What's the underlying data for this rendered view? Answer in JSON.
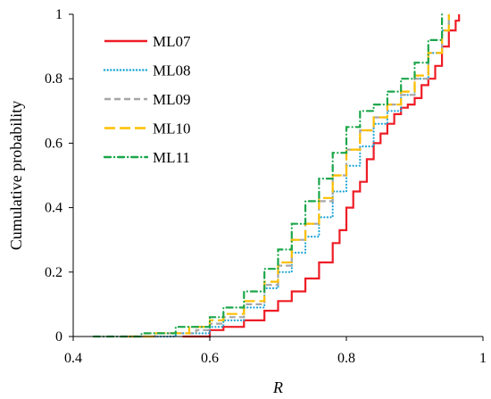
{
  "chart_data": {
    "type": "line",
    "title": "",
    "xlabel": "R",
    "ylabel": "Cumulative probability",
    "xlim": [
      0.4,
      1.0
    ],
    "ylim": [
      0,
      1
    ],
    "x_ticks": [
      "0.4",
      "0.6",
      "0.8",
      "1"
    ],
    "y_ticks": [
      "0",
      "0.2",
      "0.4",
      "0.6",
      "0.8",
      "1"
    ],
    "grid": false,
    "legend_position": "top-left",
    "series": [
      {
        "name": "ML07",
        "color": "#ee1c25",
        "dash": "solid",
        "x": [
          0.56,
          0.6,
          0.62,
          0.65,
          0.68,
          0.7,
          0.72,
          0.74,
          0.76,
          0.78,
          0.79,
          0.8,
          0.81,
          0.82,
          0.83,
          0.84,
          0.85,
          0.86,
          0.87,
          0.88,
          0.89,
          0.9,
          0.91,
          0.92,
          0.93,
          0.94,
          0.95,
          0.96,
          0.965
        ],
        "y": [
          0.0,
          0.02,
          0.03,
          0.05,
          0.08,
          0.11,
          0.14,
          0.18,
          0.23,
          0.29,
          0.33,
          0.4,
          0.45,
          0.48,
          0.55,
          0.6,
          0.63,
          0.66,
          0.69,
          0.71,
          0.72,
          0.74,
          0.78,
          0.8,
          0.84,
          0.9,
          0.95,
          0.98,
          1.0
        ]
      },
      {
        "name": "ML08",
        "color": "#1ea5d8",
        "dash": "dotted",
        "x": [
          0.5,
          0.55,
          0.6,
          0.62,
          0.65,
          0.68,
          0.7,
          0.72,
          0.74,
          0.76,
          0.78,
          0.8,
          0.82,
          0.84,
          0.86,
          0.88,
          0.9,
          0.92,
          0.94,
          0.95
        ],
        "y": [
          0.0,
          0.01,
          0.03,
          0.05,
          0.09,
          0.15,
          0.2,
          0.26,
          0.31,
          0.37,
          0.45,
          0.53,
          0.59,
          0.66,
          0.7,
          0.75,
          0.8,
          0.88,
          0.95,
          1.0
        ]
      },
      {
        "name": "ML09",
        "color": "#a6a6a6",
        "dash": "dashed",
        "x": [
          0.47,
          0.52,
          0.58,
          0.6,
          0.62,
          0.65,
          0.68,
          0.7,
          0.72,
          0.74,
          0.76,
          0.78,
          0.8,
          0.82,
          0.84,
          0.86,
          0.88,
          0.9,
          0.92,
          0.94,
          0.95
        ],
        "y": [
          0.0,
          0.01,
          0.02,
          0.04,
          0.06,
          0.1,
          0.16,
          0.22,
          0.3,
          0.35,
          0.42,
          0.5,
          0.58,
          0.64,
          0.68,
          0.72,
          0.75,
          0.8,
          0.88,
          0.95,
          1.0
        ]
      },
      {
        "name": "ML10",
        "color": "#ffbf00",
        "dash": "longdash",
        "x": [
          0.48,
          0.52,
          0.57,
          0.6,
          0.62,
          0.65,
          0.68,
          0.7,
          0.72,
          0.74,
          0.76,
          0.78,
          0.8,
          0.82,
          0.84,
          0.86,
          0.88,
          0.9,
          0.92,
          0.94,
          0.95
        ],
        "y": [
          0.0,
          0.01,
          0.03,
          0.05,
          0.07,
          0.11,
          0.17,
          0.23,
          0.3,
          0.35,
          0.43,
          0.5,
          0.58,
          0.64,
          0.68,
          0.72,
          0.76,
          0.81,
          0.88,
          0.95,
          1.0
        ]
      },
      {
        "name": "ML11",
        "color": "#1aa64a",
        "dash": "dashdot",
        "x": [
          0.43,
          0.5,
          0.55,
          0.6,
          0.62,
          0.65,
          0.68,
          0.7,
          0.72,
          0.74,
          0.76,
          0.78,
          0.8,
          0.82,
          0.84,
          0.86,
          0.88,
          0.9,
          0.92,
          0.94
        ],
        "y": [
          0.0,
          0.01,
          0.03,
          0.06,
          0.09,
          0.14,
          0.21,
          0.27,
          0.35,
          0.42,
          0.49,
          0.57,
          0.65,
          0.7,
          0.72,
          0.76,
          0.8,
          0.85,
          0.92,
          1.0
        ]
      }
    ]
  }
}
